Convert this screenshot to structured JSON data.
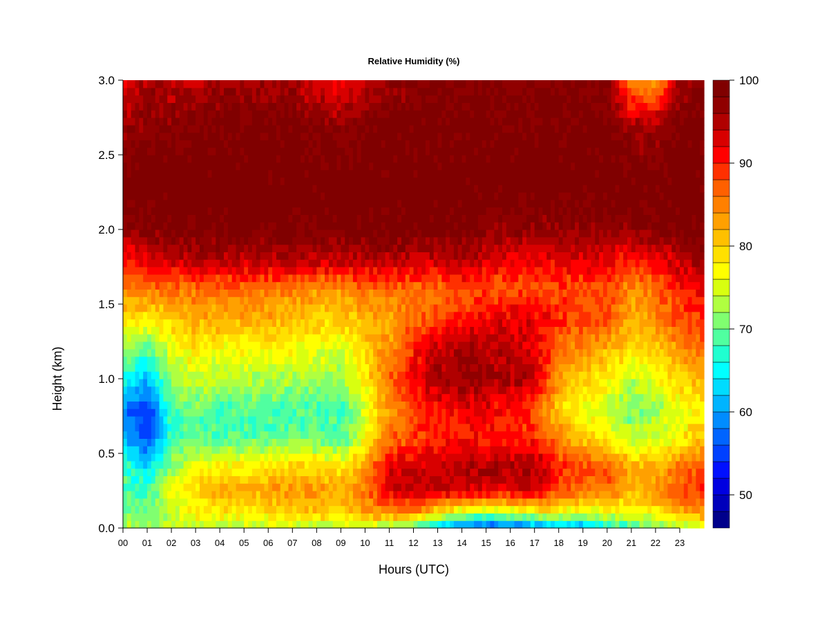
{
  "chart_data": {
    "type": "heatmap",
    "title": "Relative Humidity (%)",
    "xlabel": "Hours (UTC)",
    "ylabel": "Height (km)",
    "xlim": [
      0,
      24
    ],
    "ylim": [
      0,
      3.0
    ],
    "x_ticks": [
      "00",
      "01",
      "02",
      "03",
      "04",
      "05",
      "06",
      "07",
      "08",
      "09",
      "10",
      "11",
      "12",
      "13",
      "14",
      "15",
      "16",
      "17",
      "18",
      "19",
      "20",
      "21",
      "22",
      "23"
    ],
    "y_ticks": [
      "0.0",
      "0.5",
      "1.0",
      "1.5",
      "2.0",
      "2.5",
      "3.0"
    ],
    "colorbar": {
      "min": 46,
      "max": 100,
      "step": 2,
      "ticks": [
        "50",
        "60",
        "70",
        "80",
        "90",
        "100"
      ],
      "tick_values": [
        50,
        60,
        70,
        80,
        90,
        100
      ],
      "colors": [
        "#00008b",
        "#0000bb",
        "#0000e0",
        "#0010ff",
        "#0040ff",
        "#0064ff",
        "#008cff",
        "#00b4ff",
        "#00dcff",
        "#00ffff",
        "#20ffd0",
        "#50ffa0",
        "#80ff70",
        "#b0ff40",
        "#d8ff10",
        "#ffff00",
        "#ffe000",
        "#ffc000",
        "#ffa000",
        "#ff8000",
        "#ff6000",
        "#ff3000",
        "#ff0000",
        "#d80000",
        "#b00000",
        "#900000",
        "#800000"
      ]
    },
    "height_levels_km": [
      0.0,
      0.1,
      0.25,
      0.4,
      0.6,
      0.8,
      1.0,
      1.2,
      1.4,
      1.6,
      1.8,
      2.0,
      2.3,
      2.7,
      3.0
    ],
    "hours": [
      0,
      1,
      2,
      3,
      4,
      5,
      6,
      7,
      8,
      9,
      10,
      11,
      12,
      13,
      14,
      15,
      16,
      17,
      18,
      19,
      20,
      21,
      22,
      23,
      24
    ],
    "rh_profiles": [
      [
        74,
        72,
        70,
        68,
        62,
        58,
        66,
        72,
        78,
        84,
        90,
        97,
        100,
        96,
        92
      ],
      [
        72,
        70,
        68,
        64,
        55,
        54,
        62,
        70,
        78,
        86,
        92,
        98,
        100,
        98,
        96
      ],
      [
        73,
        74,
        76,
        72,
        68,
        68,
        72,
        76,
        80,
        86,
        94,
        99,
        100,
        98,
        94
      ],
      [
        73,
        77,
        80,
        76,
        70,
        70,
        75,
        78,
        82,
        86,
        95,
        99,
        100,
        98,
        94
      ],
      [
        73,
        78,
        82,
        78,
        69,
        68,
        73,
        77,
        82,
        86,
        95,
        99,
        100,
        99,
        96
      ],
      [
        73,
        78,
        82,
        78,
        69,
        69,
        73,
        77,
        82,
        86,
        95,
        99,
        100,
        99,
        96
      ],
      [
        73,
        79,
        83,
        79,
        69,
        68,
        73,
        77,
        82,
        86,
        95,
        99,
        100,
        99,
        96
      ],
      [
        73,
        80,
        84,
        80,
        70,
        69,
        73,
        77,
        81,
        85,
        95,
        99,
        100,
        99,
        96
      ],
      [
        73,
        80,
        84,
        80,
        70,
        69,
        73,
        76,
        80,
        84,
        94,
        99,
        100,
        98,
        93
      ],
      [
        73,
        79,
        82,
        78,
        69,
        68,
        72,
        75,
        80,
        84,
        94,
        99,
        100,
        97,
        91
      ],
      [
        74,
        82,
        86,
        84,
        76,
        75,
        78,
        80,
        82,
        86,
        95,
        99,
        100,
        98,
        94
      ],
      [
        72,
        84,
        92,
        92,
        86,
        84,
        86,
        84,
        82,
        86,
        95,
        99,
        100,
        99,
        96
      ],
      [
        68,
        84,
        94,
        94,
        88,
        88,
        92,
        90,
        86,
        86,
        94,
        99,
        100,
        99,
        97
      ],
      [
        62,
        78,
        94,
        95,
        90,
        90,
        96,
        94,
        88,
        86,
        94,
        99,
        100,
        99,
        98
      ],
      [
        58,
        74,
        93,
        95,
        90,
        92,
        97,
        96,
        90,
        88,
        95,
        99,
        100,
        99,
        98
      ],
      [
        54,
        72,
        92,
        95,
        90,
        92,
        96,
        95,
        92,
        88,
        93,
        97,
        100,
        99,
        98
      ],
      [
        55,
        74,
        93,
        96,
        90,
        90,
        96,
        94,
        92,
        88,
        92,
        97,
        100,
        99,
        98
      ],
      [
        58,
        76,
        93,
        96,
        90,
        88,
        94,
        93,
        92,
        88,
        92,
        97,
        100,
        99,
        98
      ],
      [
        60,
        76,
        88,
        90,
        84,
        80,
        84,
        86,
        90,
        88,
        92,
        97,
        100,
        99,
        98
      ],
      [
        60,
        75,
        86,
        88,
        80,
        76,
        80,
        84,
        88,
        88,
        92,
        97,
        100,
        99,
        98
      ],
      [
        64,
        76,
        86,
        88,
        78,
        74,
        78,
        82,
        88,
        88,
        92,
        97,
        100,
        99,
        98
      ],
      [
        68,
        76,
        82,
        82,
        74,
        70,
        74,
        78,
        82,
        84,
        90,
        97,
        100,
        96,
        84
      ],
      [
        70,
        78,
        84,
        82,
        74,
        72,
        76,
        80,
        84,
        86,
        92,
        98,
        100,
        95,
        82
      ],
      [
        72,
        82,
        88,
        86,
        78,
        76,
        80,
        84,
        88,
        90,
        94,
        99,
        100,
        99,
        96
      ],
      [
        72,
        84,
        90,
        88,
        80,
        78,
        82,
        86,
        90,
        92,
        96,
        99,
        100,
        99,
        98
      ]
    ]
  }
}
